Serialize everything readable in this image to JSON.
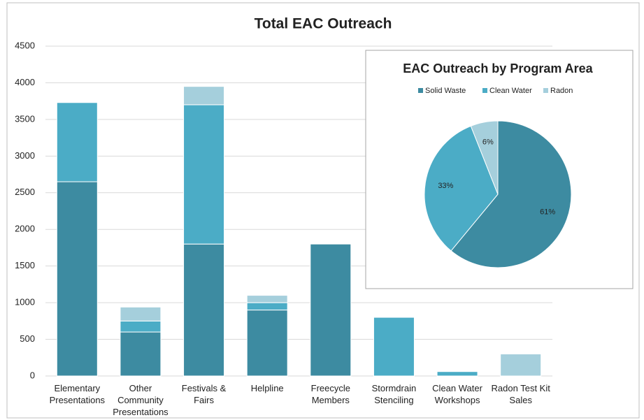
{
  "chart_data": [
    {
      "type": "bar",
      "stacked": true,
      "title": "Total EAC Outreach",
      "categories": [
        "Elementary Presentations",
        "Other Community Presentations",
        "Festivals & Fairs",
        "Helpline",
        "Freecycle Members",
        "Stormdrain Stenciling",
        "Clean Water Workshops",
        "Radon Test Kit Sales"
      ],
      "series": [
        {
          "color": "#3d8ba1",
          "values": [
            2650,
            600,
            1800,
            900,
            1800,
            0,
            0,
            0
          ]
        },
        {
          "color": "#4bacc6",
          "values": [
            1080,
            150,
            1900,
            100,
            0,
            800,
            60,
            0
          ]
        },
        {
          "color": "#a5cfdc",
          "values": [
            0,
            190,
            250,
            100,
            0,
            0,
            0,
            300
          ]
        }
      ],
      "ylim": [
        0,
        4500
      ],
      "yticks": [
        0,
        500,
        1000,
        1500,
        2000,
        2500,
        3000,
        3500,
        4000,
        4500
      ],
      "grid": true
    },
    {
      "type": "pie",
      "title": "EAC Outreach by Program Area",
      "categories": [
        "Solid Waste",
        "Clean Water",
        "Radon"
      ],
      "values": [
        61,
        33,
        6
      ],
      "value_labels": [
        "61%",
        "33%",
        "6%"
      ],
      "colors": [
        "#3d8ba1",
        "#4bacc6",
        "#a5cfdc"
      ],
      "legend": "top"
    }
  ]
}
